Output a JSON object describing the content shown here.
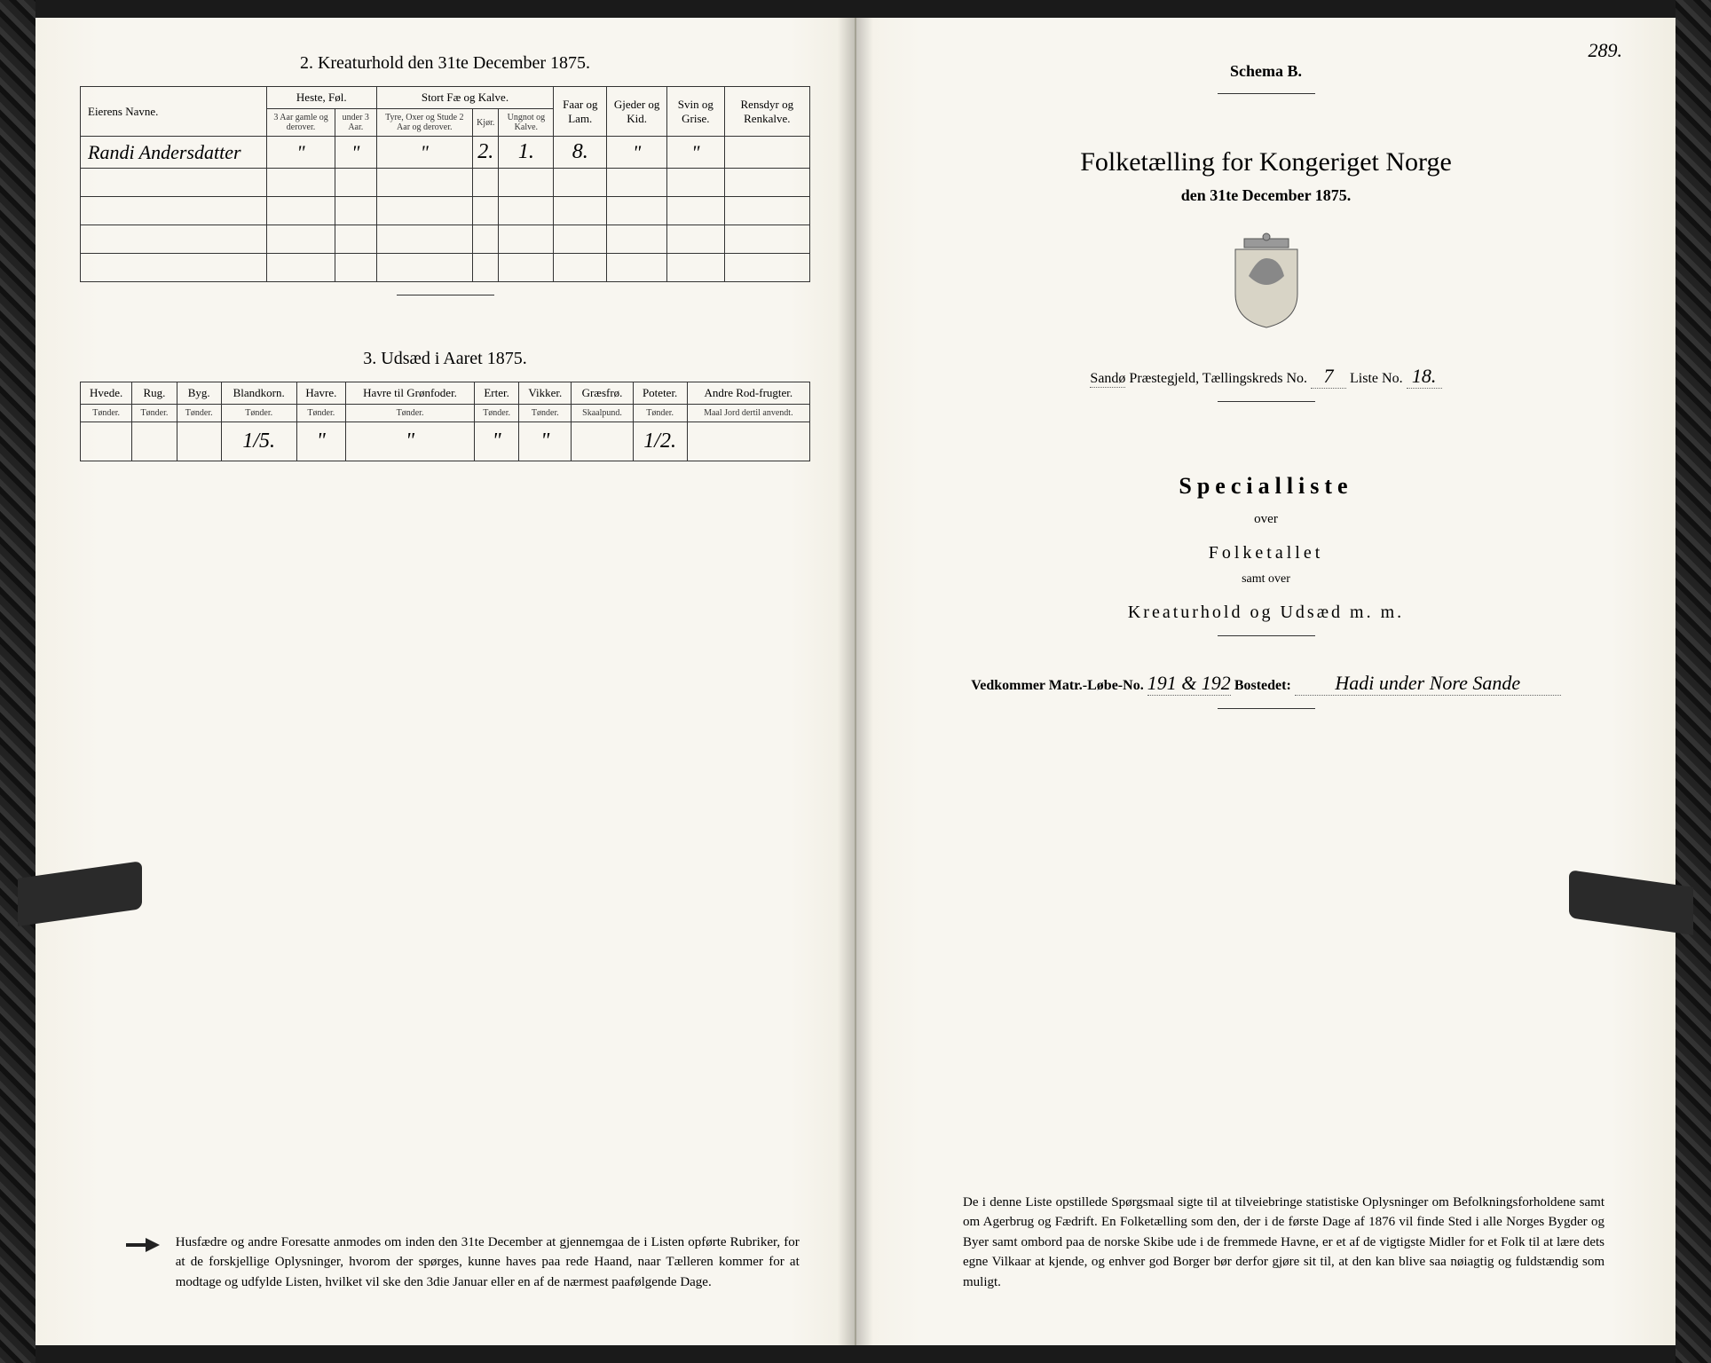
{
  "left": {
    "title2": "2.  Kreaturhold den 31te December 1875.",
    "table2": {
      "eier_header": "Eierens Navne.",
      "groups": [
        {
          "label": "Heste, Føl.",
          "subs": [
            "3 Aar gamle og derover.",
            "under 3 Aar."
          ]
        },
        {
          "label": "Stort Fæ og Kalve.",
          "subs": [
            "Tyre, Oxer og Stude 2 Aar og derover.",
            "Kjør.",
            "Ungnot og Kalve."
          ]
        },
        {
          "label": "Faar og Lam.",
          "subs": []
        },
        {
          "label": "Gjeder og Kid.",
          "subs": []
        },
        {
          "label": "Svin og Grise.",
          "subs": []
        },
        {
          "label": "Rensdyr og Renkalve.",
          "subs": []
        }
      ],
      "row": {
        "name": "Randi Andersdatter",
        "vals": [
          "\"",
          "\"",
          "\"",
          "2.",
          "1.",
          "8.",
          "\"",
          "\"",
          ""
        ]
      }
    },
    "title3": "3.  Udsæd i Aaret 1875.",
    "table3": {
      "headers": [
        {
          "h": "Hvede.",
          "s": "Tønder."
        },
        {
          "h": "Rug.",
          "s": "Tønder."
        },
        {
          "h": "Byg.",
          "s": "Tønder."
        },
        {
          "h": "Blandkorn.",
          "s": "Tønder."
        },
        {
          "h": "Havre.",
          "s": "Tønder."
        },
        {
          "h": "Havre til Grønfoder.",
          "s": "Tønder."
        },
        {
          "h": "Erter.",
          "s": "Tønder."
        },
        {
          "h": "Vikker.",
          "s": "Tønder."
        },
        {
          "h": "Græsfrø.",
          "s": "Skaalpund."
        },
        {
          "h": "Poteter.",
          "s": "Tønder."
        },
        {
          "h": "Andre Rod-frugter.",
          "s": "Maal Jord dertil anvendt."
        }
      ],
      "vals": [
        "",
        "",
        "",
        "1/5.",
        "\"",
        "\"",
        "\"",
        "\"",
        "",
        "1/2.",
        ""
      ]
    },
    "notice": "Husfædre og andre Foresatte anmodes om inden den 31te December at gjennemgaa de i Listen opførte Rubriker, for at de forskjellige Oplysninger, hvorom der spørges, kunne haves paa rede Haand, naar Tælleren kommer for at modtage og udfylde Listen, hvilket vil ske den 3die Januar eller en af de nærmest paafølgende Dage."
  },
  "right": {
    "pageno": "289.",
    "schema": "Schema B.",
    "title": "Folketælling for Kongeriget Norge",
    "subtitle": "den 31te December 1875.",
    "presteg_pre": "Sandø",
    "presteg_label": " Præstegjeld,  Tællingskreds No. ",
    "kreds": "7",
    "liste_label": "    Liste No. ",
    "liste": "18.",
    "special": "Specialliste",
    "over": "over",
    "folket": "Folketallet",
    "samt": "samt over",
    "kreat": "Kreaturhold og Udsæd m. m.",
    "vedk_pre": "Vedkommer Matr.-Løbe-No. ",
    "matr": "191 & 192",
    "bosted_label": "   Bostedet:  ",
    "bosted": "Hadi under Nore Sande",
    "bottom": "De i denne Liste opstillede Spørgsmaal sigte til at tilveiebringe statistiske Oplysninger om Befolkningsforholdene samt om Agerbrug og Fædrift.  En Folketælling som den, der i de første Dage af 1876 vil finde Sted i alle Norges Bygder og Byer samt ombord paa de norske Skibe ude i de fremmede Havne, er et af de vigtigste Midler for et Folk til at lære dets egne Vilkaar at kjende, og enhver god Borger bør derfor gjøre sit til, at den kan blive saa nøiagtig og fuldstændig som muligt."
  },
  "colors": {
    "ink": "#222",
    "paper": "#f8f6f0"
  }
}
